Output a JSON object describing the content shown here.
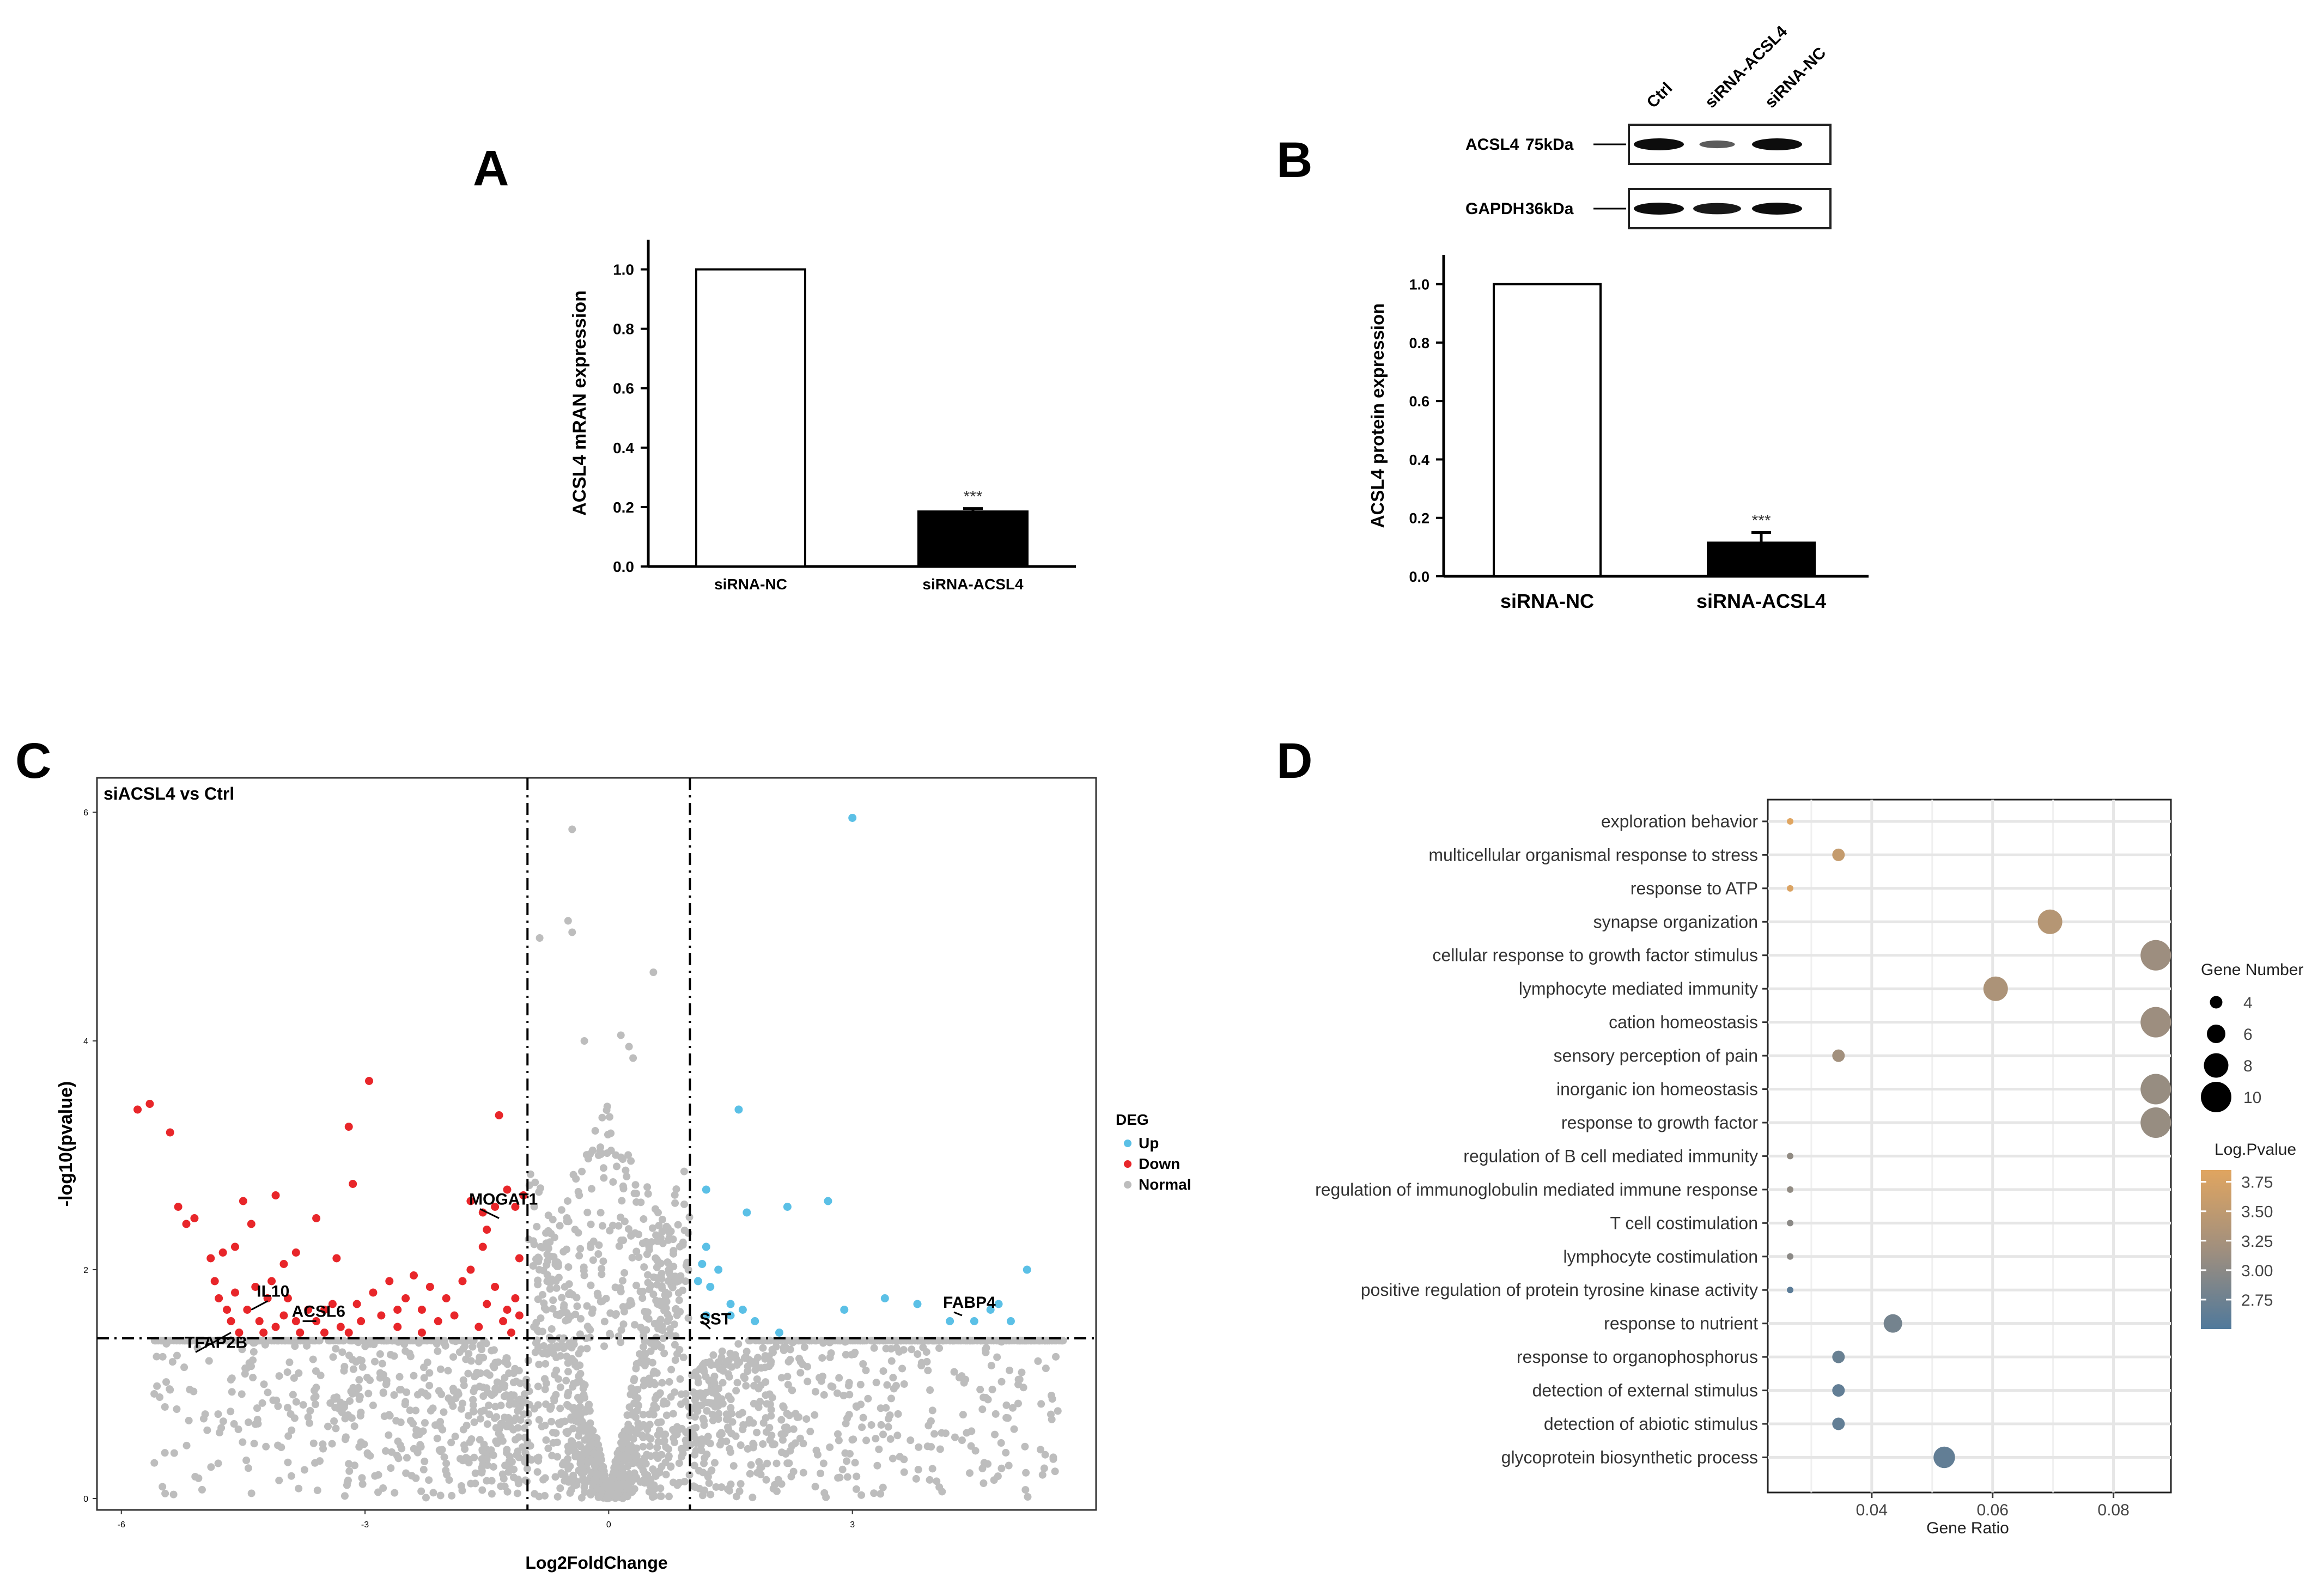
{
  "panels": {
    "a": "A",
    "b": "B",
    "c": "C",
    "d": "D"
  },
  "chart_data": [
    {
      "id": "A",
      "type": "bar",
      "title": "",
      "ylabel": "ACSL4 mRAN expression",
      "xlabel": "",
      "categories": [
        "siRNA-NC",
        "siRNA-ACSL4"
      ],
      "values": [
        1.0,
        0.185
      ],
      "errors": [
        0,
        0.01
      ],
      "fills": [
        "#ffffff",
        "#000000"
      ],
      "significance": [
        "",
        "***"
      ],
      "ylim": [
        0,
        1.1
      ],
      "yticks": [
        "0.0",
        "0.2",
        "0.4",
        "0.6",
        "0.8",
        "1.0"
      ]
    },
    {
      "id": "B",
      "type": "bar",
      "title": "",
      "ylabel": "ACSL4 protein expression",
      "xlabel": "",
      "categories": [
        "siRNA-NC",
        "siRNA-ACSL4"
      ],
      "values": [
        1.0,
        0.115
      ],
      "errors": [
        0,
        0.035
      ],
      "fills": [
        "#ffffff",
        "#000000"
      ],
      "significance": [
        "",
        "***"
      ],
      "ylim": [
        0,
        1.1
      ],
      "yticks": [
        "0.0",
        "0.2",
        "0.4",
        "0.6",
        "0.8",
        "1.0"
      ],
      "blot": {
        "lanes": [
          "Ctrl",
          "siRNA-ACSL4",
          "siRNA-NC"
        ],
        "rows": [
          {
            "protein": "ACSL4",
            "size": "75kDa",
            "intensity": [
              1.0,
              0.35,
              1.0
            ]
          },
          {
            "protein": "GAPDH",
            "size": "36kDa",
            "intensity": [
              1.0,
              0.9,
              1.0
            ]
          }
        ]
      }
    },
    {
      "id": "C",
      "type": "scatter",
      "title": "siACSL4 vs Ctrl",
      "xlabel": "Log2FoldChange",
      "ylabel": "-log10(pvalue)",
      "xlim": [
        -6.3,
        6
      ],
      "ylim": [
        -0.1,
        6.3
      ],
      "xticks": [
        -6,
        -3,
        0,
        3
      ],
      "yticks": [
        0,
        2,
        4,
        6
      ],
      "fc_cutoffs": [
        -1,
        1
      ],
      "p_cutoff": 1.4,
      "legend": {
        "title": "DEG",
        "items": [
          {
            "label": "Up",
            "color": "#5bc0e6"
          },
          {
            "label": "Down",
            "color": "#e8262a"
          },
          {
            "label": "Normal",
            "color": "#bdbdbd"
          }
        ]
      },
      "up_points": [
        [
          3.0,
          5.95
        ],
        [
          1.6,
          3.4
        ],
        [
          2.2,
          2.55
        ],
        [
          2.7,
          2.6
        ],
        [
          1.2,
          2.7
        ],
        [
          1.7,
          2.5
        ],
        [
          1.2,
          2.2
        ],
        [
          1.15,
          2.05
        ],
        [
          1.35,
          2.0
        ],
        [
          1.1,
          1.9
        ],
        [
          1.25,
          1.85
        ],
        [
          1.5,
          1.7
        ],
        [
          1.2,
          1.6
        ],
        [
          1.5,
          1.6
        ],
        [
          1.65,
          1.65
        ],
        [
          1.8,
          1.55
        ],
        [
          2.1,
          1.45
        ],
        [
          2.9,
          1.65
        ],
        [
          3.4,
          1.75
        ],
        [
          3.8,
          1.7
        ],
        [
          4.2,
          1.55
        ],
        [
          4.5,
          1.55
        ],
        [
          4.7,
          1.65
        ],
        [
          4.8,
          1.7
        ],
        [
          4.95,
          1.55
        ],
        [
          5.15,
          2.0
        ]
      ],
      "down_points": [
        [
          -5.8,
          3.4
        ],
        [
          -5.65,
          3.45
        ],
        [
          -5.4,
          3.2
        ],
        [
          -5.3,
          2.55
        ],
        [
          -5.2,
          2.4
        ],
        [
          -5.1,
          2.45
        ],
        [
          -4.9,
          2.1
        ],
        [
          -4.75,
          2.15
        ],
        [
          -4.6,
          2.2
        ],
        [
          -4.5,
          2.6
        ],
        [
          -4.4,
          2.4
        ],
        [
          -4.1,
          2.65
        ],
        [
          -4.0,
          2.05
        ],
        [
          -3.85,
          2.15
        ],
        [
          -3.6,
          2.45
        ],
        [
          -3.35,
          2.1
        ],
        [
          -3.2,
          3.25
        ],
        [
          -3.15,
          2.75
        ],
        [
          -3.1,
          1.7
        ],
        [
          -2.95,
          3.65
        ],
        [
          -4.85,
          1.9
        ],
        [
          -4.8,
          1.75
        ],
        [
          -4.7,
          1.65
        ],
        [
          -4.65,
          1.55
        ],
        [
          -4.6,
          1.8
        ],
        [
          -4.55,
          1.45
        ],
        [
          -4.45,
          1.65
        ],
        [
          -4.35,
          1.85
        ],
        [
          -4.3,
          1.55
        ],
        [
          -4.25,
          1.45
        ],
        [
          -4.2,
          1.75
        ],
        [
          -4.1,
          1.5
        ],
        [
          -4.0,
          1.6
        ],
        [
          -3.95,
          1.75
        ],
        [
          -3.85,
          1.55
        ],
        [
          -3.8,
          1.45
        ],
        [
          -3.7,
          1.65
        ],
        [
          -3.6,
          1.55
        ],
        [
          -3.5,
          1.45
        ],
        [
          -3.4,
          1.7
        ],
        [
          -3.3,
          1.5
        ],
        [
          -3.2,
          1.45
        ],
        [
          -3.05,
          1.55
        ],
        [
          -2.9,
          1.8
        ],
        [
          -2.8,
          1.6
        ],
        [
          -2.7,
          1.9
        ],
        [
          -2.6,
          1.5
        ],
        [
          -2.5,
          1.75
        ],
        [
          -2.4,
          1.95
        ],
        [
          -2.3,
          1.65
        ],
        [
          -2.2,
          1.85
        ],
        [
          -2.1,
          1.55
        ],
        [
          -2.0,
          1.75
        ],
        [
          -1.9,
          1.6
        ],
        [
          -1.8,
          1.9
        ],
        [
          -1.7,
          2.0
        ],
        [
          -1.6,
          1.5
        ],
        [
          -1.5,
          1.7
        ],
        [
          -1.4,
          1.85
        ],
        [
          -1.3,
          1.55
        ],
        [
          -1.25,
          1.65
        ],
        [
          -1.2,
          1.45
        ],
        [
          -1.15,
          1.75
        ],
        [
          -1.1,
          1.6
        ],
        [
          -1.7,
          2.6
        ],
        [
          -1.55,
          2.5
        ],
        [
          -1.5,
          2.35
        ],
        [
          -1.4,
          2.55
        ],
        [
          -1.35,
          3.35
        ],
        [
          -1.25,
          2.7
        ],
        [
          -1.15,
          2.55
        ],
        [
          -1.05,
          2.65
        ],
        [
          -1.1,
          2.1
        ],
        [
          -1.55,
          2.2
        ],
        [
          -2.3,
          1.45
        ],
        [
          -2.6,
          1.65
        ],
        [
          -3.5,
          1.65
        ],
        [
          -4.15,
          1.9
        ]
      ],
      "normal_points_example": [
        [
          -0.45,
          5.85
        ],
        [
          -0.5,
          5.05
        ],
        [
          -0.45,
          4.95
        ],
        [
          -0.85,
          4.9
        ],
        [
          -0.3,
          4.0
        ],
        [
          0.25,
          3.95
        ],
        [
          0.15,
          4.05
        ],
        [
          0.55,
          4.6
        ],
        [
          0.3,
          3.85
        ],
        [
          -5.4,
          0.95
        ],
        [
          -4.35,
          0.65
        ],
        [
          5.45,
          0.9
        ]
      ],
      "annotations": [
        {
          "label": "IL10",
          "x": -4.4,
          "y": 1.65
        },
        {
          "label": "TFAP2B",
          "x": -4.65,
          "y": 1.45
        },
        {
          "label": "ACSL6",
          "x": -3.6,
          "y": 1.55
        },
        {
          "label": "MOGAT1",
          "x": -1.35,
          "y": 2.45
        },
        {
          "label": "SST",
          "x": 1.15,
          "y": 1.55
        },
        {
          "label": "FABP4",
          "x": 4.35,
          "y": 1.6
        }
      ]
    },
    {
      "id": "D",
      "type": "scatter",
      "subtype": "dotplot",
      "title": "",
      "xlabel": "Gene Ratio",
      "ylabel": "",
      "xlim": [
        0.0228,
        0.0895
      ],
      "xticks": [
        0.04,
        0.06,
        0.08
      ],
      "xtick_labels": [
        "0.04",
        "0.06",
        "0.08"
      ],
      "size_legend": {
        "title": "Gene Number",
        "values": [
          4,
          6,
          8,
          10
        ]
      },
      "color_legend": {
        "title": "Log.Pvalue",
        "ticks": [
          3.75,
          3.5,
          3.25,
          3.0,
          2.75
        ],
        "tick_labels": [
          "3.75",
          "3.50",
          "3.25",
          "3.00",
          "2.75"
        ],
        "range": [
          2.5,
          3.85
        ],
        "low_color": "#50799b",
        "mid_color": "#a08f7e",
        "high_color": "#e0a560"
      },
      "terms": [
        {
          "label": "exploration behavior",
          "gene_ratio": 0.0265,
          "count": 2,
          "log_p": 3.85
        },
        {
          "label": "multicellular organismal response to stress",
          "gene_ratio": 0.0345,
          "count": 4,
          "log_p": 3.55
        },
        {
          "label": "response to ATP",
          "gene_ratio": 0.0265,
          "count": 2,
          "log_p": 3.8
        },
        {
          "label": "synapse organization",
          "gene_ratio": 0.0695,
          "count": 8,
          "log_p": 3.4
        },
        {
          "label": "cellular response to growth factor stimulus",
          "gene_ratio": 0.087,
          "count": 10,
          "log_p": 3.15
        },
        {
          "label": "lymphocyte mediated immunity",
          "gene_ratio": 0.0605,
          "count": 8,
          "log_p": 3.3
        },
        {
          "label": "cation homeostasis",
          "gene_ratio": 0.087,
          "count": 10,
          "log_p": 3.15
        },
        {
          "label": "sensory perception of pain",
          "gene_ratio": 0.0345,
          "count": 4,
          "log_p": 3.2
        },
        {
          "label": "inorganic ion homeostasis",
          "gene_ratio": 0.087,
          "count": 10,
          "log_p": 3.1
        },
        {
          "label": "response to growth factor",
          "gene_ratio": 0.087,
          "count": 10,
          "log_p": 3.1
        },
        {
          "label": "regulation of B cell mediated immunity",
          "gene_ratio": 0.0265,
          "count": 2,
          "log_p": 3.05
        },
        {
          "label": "regulation of immunoglobulin mediated immune response",
          "gene_ratio": 0.0265,
          "count": 2,
          "log_p": 3.05
        },
        {
          "label": "T cell costimulation",
          "gene_ratio": 0.0265,
          "count": 2,
          "log_p": 3.0
        },
        {
          "label": "lymphocyte costimulation",
          "gene_ratio": 0.0265,
          "count": 2,
          "log_p": 3.0
        },
        {
          "label": "positive regulation of protein tyrosine kinase activity",
          "gene_ratio": 0.0265,
          "count": 2,
          "log_p": 2.6
        },
        {
          "label": "response to nutrient",
          "gene_ratio": 0.0435,
          "count": 6,
          "log_p": 2.8
        },
        {
          "label": "response to organophosphorus",
          "gene_ratio": 0.0345,
          "count": 4,
          "log_p": 2.7
        },
        {
          "label": "detection of external stimulus",
          "gene_ratio": 0.0345,
          "count": 4,
          "log_p": 2.65
        },
        {
          "label": "detection of abiotic stimulus",
          "gene_ratio": 0.0345,
          "count": 4,
          "log_p": 2.65
        },
        {
          "label": "glycoprotein biosynthetic process",
          "gene_ratio": 0.052,
          "count": 7,
          "log_p": 2.65
        }
      ]
    }
  ]
}
